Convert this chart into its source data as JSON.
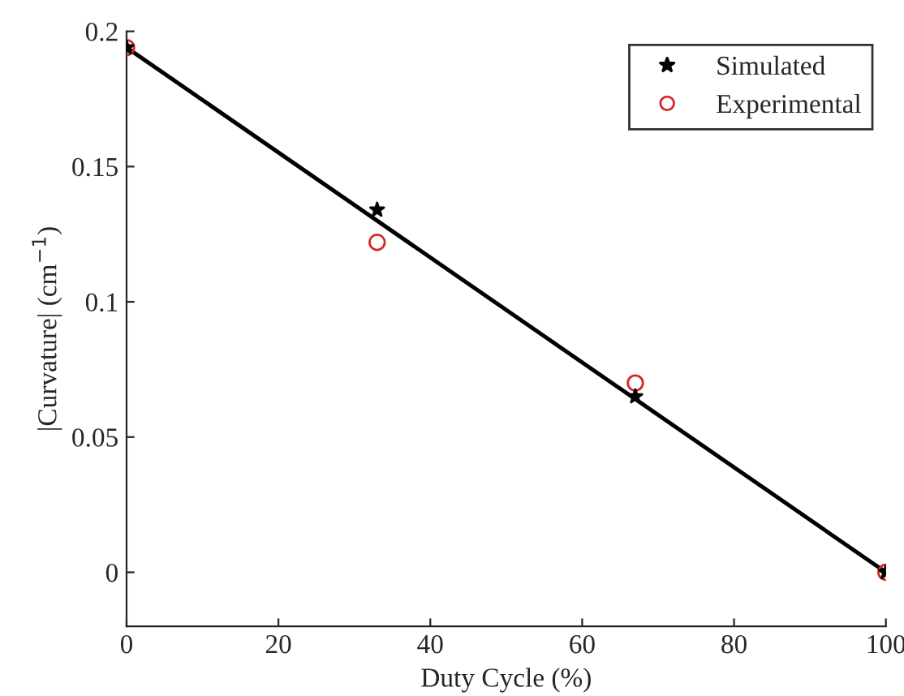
{
  "chart_data": {
    "type": "scatter",
    "xlabel": "Duty Cycle (%)",
    "ylabel": "|Curvature| (cm$^{−1}$)",
    "xlim": [
      0,
      100
    ],
    "xticks": [
      0,
      20,
      40,
      60,
      80,
      100
    ],
    "ylim": [
      -0.02,
      0.2
    ],
    "yticks": [
      0,
      0.05,
      0.1,
      0.15,
      0.2
    ],
    "legend": "top right",
    "grid": false,
    "series": [
      {
        "type": "line",
        "color": "#000000",
        "x": [
          0,
          100
        ],
        "values": [
          0.194,
          0
        ],
        "marker": "none",
        "line_style": "solid"
      },
      {
        "name": "Simulated",
        "color": "#000000",
        "marker": "star",
        "x": [
          0,
          33,
          67,
          100
        ],
        "values": [
          0.194,
          0.134,
          0.065,
          0
        ]
      },
      {
        "name": "Experimental",
        "color": "#d62728",
        "marker": "circle",
        "x": [
          0,
          33,
          67,
          100
        ],
        "values": [
          0.194,
          0.122,
          0.07,
          0
        ]
      }
    ]
  }
}
